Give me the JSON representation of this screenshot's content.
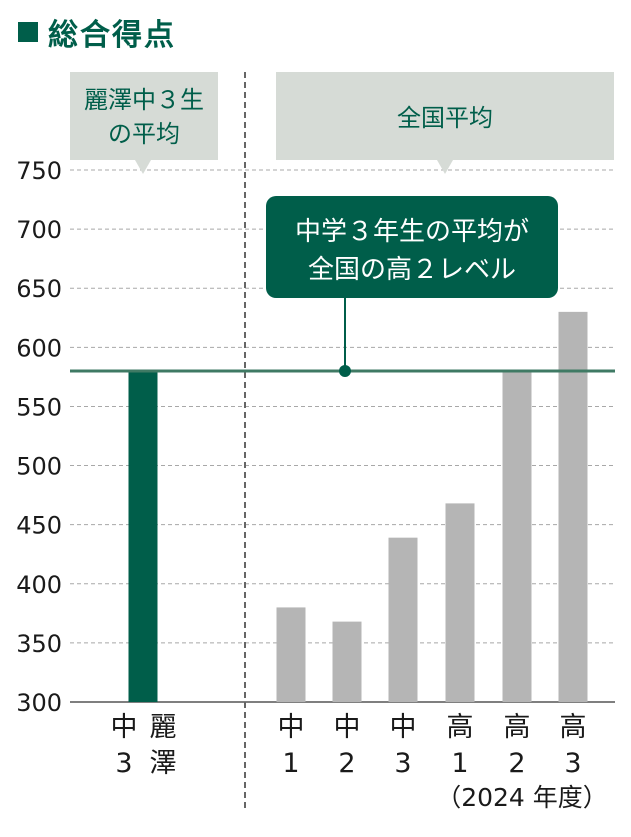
{
  "colors": {
    "accent": "#005e4a",
    "national_bar": "#b5b5b5",
    "label_box": "#d6dbd6",
    "reference_line": "#3f7a64"
  },
  "chart_data": {
    "type": "bar",
    "title": "総合得点",
    "ylim": [
      300,
      750
    ],
    "yticks": [
      "750",
      "700",
      "650",
      "600",
      "550",
      "500",
      "450",
      "400",
      "350",
      "300"
    ],
    "grid": true,
    "groups": [
      {
        "label": "麗澤中３生\nの平均",
        "categories": [
          "中\n3",
          "麗\n澤"
        ],
        "values": [
          580,
          null
        ],
        "color": "#005e4a"
      },
      {
        "label": "全国平均",
        "categories": [
          "中\n1",
          "中\n2",
          "中\n3",
          "高\n1",
          "高\n2",
          "高\n3"
        ],
        "values": [
          380,
          368,
          439,
          468,
          580,
          630
        ],
        "color": "#b5b5b5"
      }
    ],
    "reference_line": {
      "value": 580
    },
    "annotation": "中学３年生の平均が\n全国の高２レベル",
    "year_note": "（2024 年度）"
  }
}
